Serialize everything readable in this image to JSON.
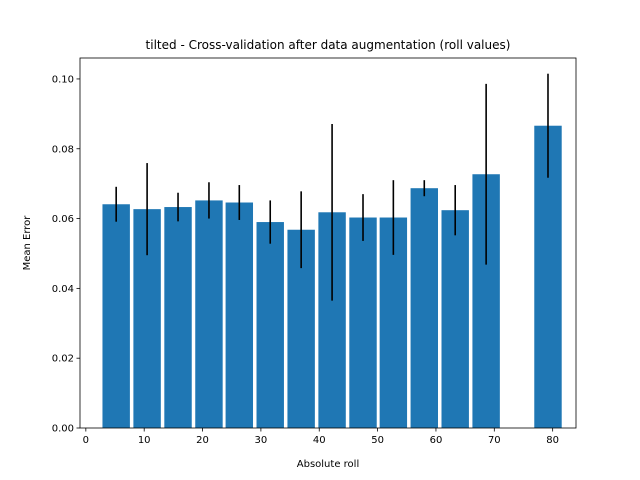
{
  "chart_data": {
    "type": "bar",
    "title": "tilted - Cross-validation after data augmentation (roll values)",
    "xlabel": "Absolute roll",
    "ylabel": "Mean Error",
    "xlim": [
      -1,
      84
    ],
    "ylim": [
      0,
      0.106
    ],
    "xticks": [
      0,
      10,
      20,
      30,
      40,
      50,
      60,
      70,
      80
    ],
    "yticks": [
      0.0,
      0.02,
      0.04,
      0.06,
      0.08,
      0.1
    ],
    "ytick_labels": [
      "0.00",
      "0.02",
      "0.04",
      "0.06",
      "0.08",
      "0.10"
    ],
    "bar_width": 4.7,
    "bar_color": "#1f77b4",
    "error_color": "#000000",
    "grid": false,
    "legend": false,
    "bars": [
      {
        "x": 5.2,
        "value": 0.0641,
        "err": 0.005
      },
      {
        "x": 10.5,
        "value": 0.0627,
        "err": 0.0132
      },
      {
        "x": 15.8,
        "value": 0.0633,
        "err": 0.0041
      },
      {
        "x": 21.1,
        "value": 0.0652,
        "err": 0.0052
      },
      {
        "x": 26.3,
        "value": 0.0646,
        "err": 0.005
      },
      {
        "x": 31.6,
        "value": 0.059,
        "err": 0.0062
      },
      {
        "x": 36.9,
        "value": 0.0568,
        "err": 0.011
      },
      {
        "x": 42.2,
        "value": 0.0618,
        "err": 0.0253
      },
      {
        "x": 47.5,
        "value": 0.0603,
        "err": 0.0067
      },
      {
        "x": 52.7,
        "value": 0.0603,
        "err": 0.0107
      },
      {
        "x": 58.0,
        "value": 0.0687,
        "err": 0.0023
      },
      {
        "x": 63.3,
        "value": 0.0624,
        "err": 0.0072
      },
      {
        "x": 68.6,
        "value": 0.0727,
        "err": 0.0259
      },
      {
        "x": 79.2,
        "value": 0.0866,
        "err": 0.0149
      }
    ]
  }
}
